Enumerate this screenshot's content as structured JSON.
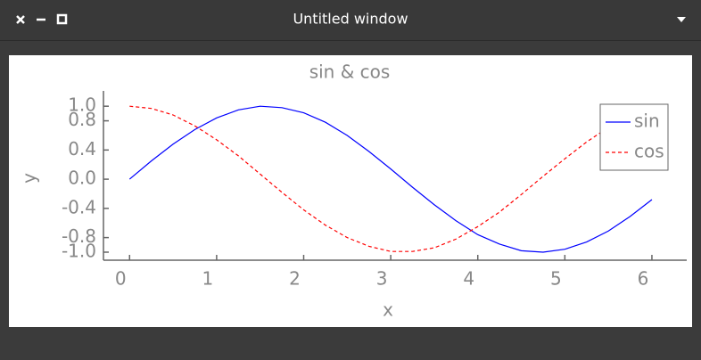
{
  "window": {
    "title": "Untitled window"
  },
  "chart_data": {
    "type": "line",
    "title": "sin & cos",
    "xlabel": "x",
    "ylabel": "y",
    "x": [
      0,
      0.25,
      0.5,
      0.75,
      1,
      1.25,
      1.5,
      1.75,
      2,
      2.25,
      2.5,
      2.75,
      3,
      3.25,
      3.5,
      3.75,
      4,
      4.25,
      4.5,
      4.75,
      5,
      5.25,
      5.5,
      5.75,
      6
    ],
    "series": [
      {
        "name": "sin",
        "color": "#0000ff",
        "dash": false,
        "values": [
          0,
          0.25,
          0.48,
          0.68,
          0.84,
          0.95,
          1.0,
          0.98,
          0.91,
          0.78,
          0.6,
          0.38,
          0.14,
          -0.11,
          -0.35,
          -0.57,
          -0.76,
          -0.89,
          -0.98,
          -1.0,
          -0.96,
          -0.86,
          -0.71,
          -0.51,
          -0.28
        ]
      },
      {
        "name": "cos",
        "color": "#ff0000",
        "dash": true,
        "values": [
          1,
          0.97,
          0.88,
          0.73,
          0.54,
          0.32,
          0.07,
          -0.18,
          -0.42,
          -0.63,
          -0.8,
          -0.92,
          -0.99,
          -0.99,
          -0.94,
          -0.82,
          -0.65,
          -0.45,
          -0.21,
          0.04,
          0.28,
          0.51,
          0.71,
          0.86,
          0.96
        ]
      }
    ],
    "xlim": [
      -0.3,
      6.4
    ],
    "ylim": [
      -1.11,
      1.21
    ],
    "xticks": [
      0,
      1,
      2,
      3,
      4,
      5,
      6
    ],
    "yticks": [
      {
        "value": 1,
        "label": "1.0"
      },
      0.8,
      0.4,
      {
        "value": 0,
        "label": "0.0"
      },
      -0.4,
      -0.8,
      {
        "value": -1,
        "label": "-1.0"
      }
    ],
    "legend": "upper right"
  }
}
